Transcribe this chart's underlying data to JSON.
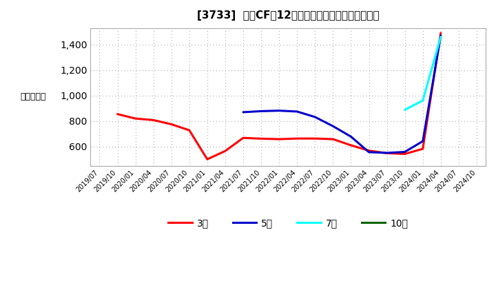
{
  "title": "[3733]  営業CFだ12か月移動合計の標準偏差の推移",
  "ylabel": "（百万円）",
  "background_color": "#ffffff",
  "plot_background_color": "#ffffff",
  "ylim": [
    450,
    1530
  ],
  "yticks": [
    600,
    800,
    1000,
    1200,
    1400
  ],
  "series": {
    "3年": {
      "color": "#ff0000",
      "data": [
        [
          "2019/07",
          null
        ],
        [
          "2019/10",
          855
        ],
        [
          "2020/01",
          820
        ],
        [
          "2020/04",
          808
        ],
        [
          "2020/07",
          775
        ],
        [
          "2020/10",
          728
        ],
        [
          "2021/01",
          500
        ],
        [
          "2021/04",
          565
        ],
        [
          "2021/07",
          668
        ],
        [
          "2021/10",
          662
        ],
        [
          "2022/01",
          658
        ],
        [
          "2022/04",
          663
        ],
        [
          "2022/07",
          663
        ],
        [
          "2022/10",
          658
        ],
        [
          "2023/01",
          610
        ],
        [
          "2023/04",
          568
        ],
        [
          "2023/07",
          548
        ],
        [
          "2023/10",
          542
        ],
        [
          "2024/01",
          582
        ],
        [
          "2024/04",
          1492
        ],
        [
          "2024/07",
          null
        ],
        [
          "2024/10",
          null
        ]
      ]
    },
    "5年": {
      "color": "#0000cc",
      "data": [
        [
          "2019/07",
          null
        ],
        [
          "2019/10",
          null
        ],
        [
          "2020/01",
          null
        ],
        [
          "2020/04",
          null
        ],
        [
          "2020/07",
          null
        ],
        [
          "2020/10",
          null
        ],
        [
          "2021/01",
          null
        ],
        [
          "2021/04",
          null
        ],
        [
          "2021/07",
          870
        ],
        [
          "2021/10",
          878
        ],
        [
          "2022/01",
          882
        ],
        [
          "2022/04",
          875
        ],
        [
          "2022/07",
          832
        ],
        [
          "2022/10",
          760
        ],
        [
          "2023/01",
          678
        ],
        [
          "2023/04",
          556
        ],
        [
          "2023/07",
          550
        ],
        [
          "2023/10",
          558
        ],
        [
          "2024/01",
          642
        ],
        [
          "2024/04",
          1472
        ],
        [
          "2024/07",
          null
        ],
        [
          "2024/10",
          null
        ]
      ]
    },
    "7年": {
      "color": "#00ffff",
      "data": [
        [
          "2019/07",
          null
        ],
        [
          "2019/10",
          null
        ],
        [
          "2020/01",
          null
        ],
        [
          "2020/04",
          null
        ],
        [
          "2020/07",
          null
        ],
        [
          "2020/10",
          null
        ],
        [
          "2021/01",
          null
        ],
        [
          "2021/04",
          null
        ],
        [
          "2021/07",
          null
        ],
        [
          "2021/10",
          null
        ],
        [
          "2022/01",
          null
        ],
        [
          "2022/04",
          null
        ],
        [
          "2022/07",
          null
        ],
        [
          "2022/10",
          null
        ],
        [
          "2023/01",
          null
        ],
        [
          "2023/04",
          null
        ],
        [
          "2023/07",
          null
        ],
        [
          "2023/10",
          888
        ],
        [
          "2024/01",
          962
        ],
        [
          "2024/04",
          1462
        ],
        [
          "2024/07",
          null
        ],
        [
          "2024/10",
          null
        ]
      ]
    },
    "10年": {
      "color": "#006400",
      "data": [
        [
          "2019/07",
          null
        ],
        [
          "2019/10",
          null
        ],
        [
          "2020/01",
          null
        ],
        [
          "2020/04",
          null
        ],
        [
          "2020/07",
          null
        ],
        [
          "2020/10",
          null
        ],
        [
          "2021/01",
          null
        ],
        [
          "2021/04",
          null
        ],
        [
          "2021/07",
          null
        ],
        [
          "2021/10",
          null
        ],
        [
          "2022/01",
          null
        ],
        [
          "2022/04",
          null
        ],
        [
          "2022/07",
          null
        ],
        [
          "2022/10",
          null
        ],
        [
          "2023/01",
          null
        ],
        [
          "2023/04",
          null
        ],
        [
          "2023/07",
          null
        ],
        [
          "2023/10",
          null
        ],
        [
          "2024/01",
          null
        ],
        [
          "2024/04",
          null
        ],
        [
          "2024/07",
          null
        ],
        [
          "2024/10",
          null
        ]
      ]
    }
  },
  "x_labels": [
    "2019/07",
    "2019/10",
    "2020/01",
    "2020/04",
    "2020/07",
    "2020/10",
    "2021/01",
    "2021/04",
    "2021/07",
    "2021/10",
    "2022/01",
    "2022/04",
    "2022/07",
    "2022/10",
    "2023/01",
    "2023/04",
    "2023/07",
    "2023/10",
    "2024/01",
    "2024/04",
    "2024/07",
    "2024/10"
  ]
}
